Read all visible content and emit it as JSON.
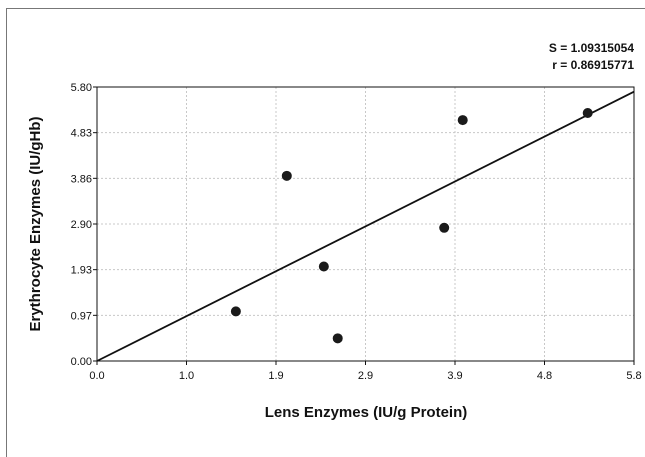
{
  "chart_data": {
    "type": "scatter",
    "xlabel": "Lens Enzymes (IU/g Protein)",
    "ylabel": "Erythrocyte Enzymes (IU/gHb)",
    "xlim": [
      0.0,
      5.8
    ],
    "ylim": [
      0.0,
      5.8
    ],
    "xticks": [
      "0.0",
      "1.0",
      "1.9",
      "2.9",
      "3.9",
      "4.8",
      "5.8"
    ],
    "yticks": [
      "0.00",
      "0.97",
      "1.93",
      "2.90",
      "3.86",
      "4.83",
      "5.80"
    ],
    "grid": true,
    "points": [
      {
        "x": 1.5,
        "y": 1.05
      },
      {
        "x": 2.05,
        "y": 3.92
      },
      {
        "x": 2.45,
        "y": 2.0
      },
      {
        "x": 2.6,
        "y": 0.48
      },
      {
        "x": 3.75,
        "y": 2.82
      },
      {
        "x": 3.95,
        "y": 5.1
      },
      {
        "x": 5.3,
        "y": 5.25
      }
    ],
    "fit_line": {
      "x": [
        0.0,
        5.8
      ],
      "y": [
        0.0,
        5.7
      ]
    },
    "annotations": {
      "s_text": "S = 1.09315054",
      "r_text": "r = 0.86915771"
    },
    "colors": {
      "points": "#1a1a1a",
      "line": "#111111",
      "grid": "#c8c8c8"
    }
  }
}
